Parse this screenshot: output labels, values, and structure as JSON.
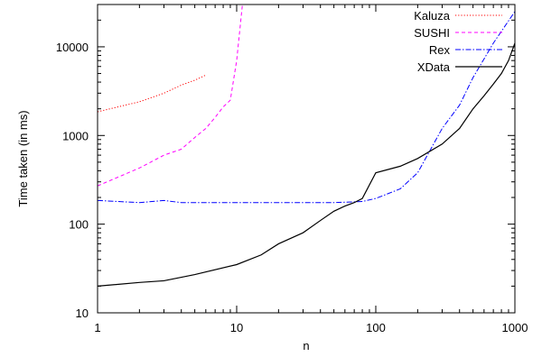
{
  "chart_data": {
    "type": "line",
    "title": "",
    "xlabel": "n",
    "ylabel": "Time taken (in ms)",
    "xscale": "log",
    "yscale": "log",
    "xlim": [
      1,
      1000
    ],
    "ylim": [
      10,
      30000
    ],
    "x_ticks": [
      1,
      10,
      100,
      1000
    ],
    "x_tick_labels": [
      "1",
      "10",
      "100",
      "1000"
    ],
    "y_ticks": [
      10,
      100,
      1000,
      10000
    ],
    "y_tick_labels": [
      "10",
      "100",
      "1000",
      "10000"
    ],
    "grid": false,
    "legend_position": "top-right",
    "series": [
      {
        "name": "Kaluza",
        "color": "#ff0000",
        "dash": "dotted",
        "x": [
          1,
          2,
          3,
          4,
          5,
          6
        ],
        "y": [
          1850,
          2400,
          3000,
          3700,
          4200,
          4800
        ]
      },
      {
        "name": "SUSHI",
        "color": "#ff00ff",
        "dash": "dashed",
        "x": [
          1,
          2,
          3,
          4,
          5,
          6,
          7,
          8,
          9,
          10,
          11
        ],
        "y": [
          270,
          430,
          600,
          700,
          950,
          1200,
          1600,
          2100,
          2500,
          7000,
          30000
        ]
      },
      {
        "name": "Rex",
        "color": "#0000ff",
        "dash": "dashdot",
        "x": [
          1,
          2,
          3,
          4,
          10,
          30,
          50,
          80,
          100,
          150,
          200,
          300,
          400,
          500,
          700,
          1000
        ],
        "y": [
          185,
          175,
          185,
          175,
          175,
          175,
          175,
          180,
          195,
          250,
          380,
          1200,
          2200,
          4500,
          11000,
          25000
        ]
      },
      {
        "name": "XData",
        "color": "#000000",
        "dash": "solid",
        "x": [
          1,
          2,
          3,
          5,
          10,
          15,
          20,
          30,
          40,
          50,
          60,
          70,
          80,
          100,
          150,
          200,
          300,
          400,
          500,
          600,
          700,
          800,
          900,
          1000
        ],
        "y": [
          20,
          22,
          23,
          27,
          35,
          45,
          60,
          80,
          110,
          140,
          160,
          175,
          195,
          380,
          450,
          550,
          800,
          1200,
          2000,
          2800,
          3800,
          5000,
          7000,
          11000
        ]
      }
    ]
  }
}
